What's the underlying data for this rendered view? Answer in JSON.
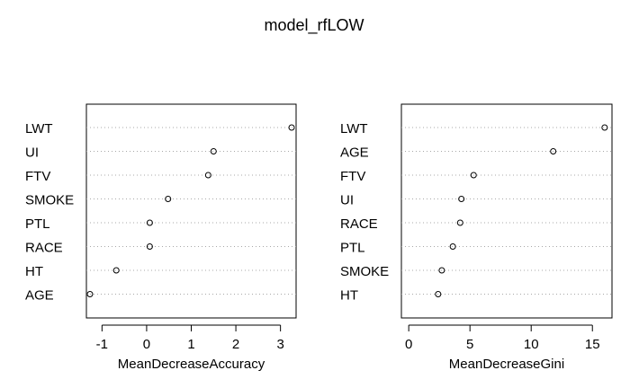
{
  "title": "model_rfLOW",
  "chart_data": [
    {
      "type": "scatter",
      "variant": "dotchart",
      "xlabel": "MeanDecreaseAccuracy",
      "xlim": [
        -1.35,
        3.35
      ],
      "xticks": [
        -1,
        0,
        1,
        2,
        3
      ],
      "categories": [
        "LWT",
        "UI",
        "FTV",
        "SMOKE",
        "PTL",
        "RACE",
        "HT",
        "AGE"
      ],
      "values": [
        3.25,
        1.5,
        1.38,
        0.48,
        0.07,
        0.07,
        -0.68,
        -1.27
      ],
      "grid": "dotted horizontal"
    },
    {
      "type": "scatter",
      "variant": "dotchart",
      "xlabel": "MeanDecreaseGini",
      "xlim": [
        -0.6,
        16.6
      ],
      "xticks": [
        0,
        5,
        10,
        15
      ],
      "categories": [
        "LWT",
        "AGE",
        "FTV",
        "UI",
        "RACE",
        "PTL",
        "SMOKE",
        "HT"
      ],
      "values": [
        16.0,
        11.8,
        5.3,
        4.3,
        4.2,
        3.6,
        2.7,
        2.4
      ],
      "grid": "dotted horizontal"
    }
  ]
}
